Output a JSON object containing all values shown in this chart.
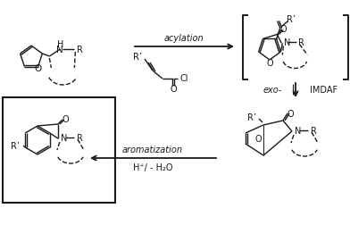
{
  "bg_color": "#ffffff",
  "text_color": "#1a1a1a",
  "figsize": [
    3.92,
    2.53
  ],
  "dpi": 100,
  "lw": 1.0,
  "fs": 7.0,
  "labels": {
    "acylation": "acylation",
    "exo": "exo-",
    "imdaf": "IMDAF",
    "aromatization": "aromatization",
    "h2o": "H⁺/ - H₂O",
    "H": "H",
    "N": "N",
    "O": "O",
    "Cl": "Cl",
    "R": "R",
    "Rprime": "R’"
  }
}
